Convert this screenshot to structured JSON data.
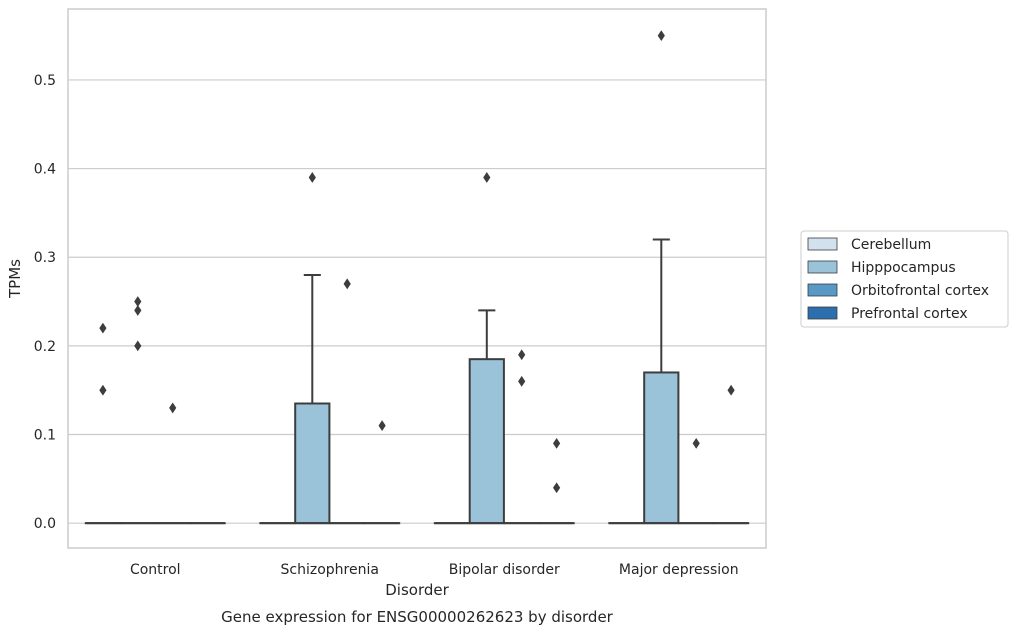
{
  "chart_data": {
    "type": "box",
    "caption": "Gene expression for ENSG00000262623 by disorder",
    "xlabel": "Disorder",
    "ylabel": "TPMs",
    "ylim": [
      -0.028,
      0.58
    ],
    "yticks": [
      0.0,
      0.1,
      0.2,
      0.3,
      0.4,
      0.5
    ],
    "ytick_labels": [
      "0.0",
      "0.1",
      "0.2",
      "0.3",
      "0.4",
      "0.5"
    ],
    "grid": "horizontal",
    "legend_position": "right",
    "categories": [
      "Control",
      "Schizophrenia",
      "Bipolar disorder",
      "Major depression"
    ],
    "series": [
      {
        "name": "Cerebellum",
        "color": "#d1e1ee",
        "boxes": [
          {
            "category": "Control",
            "q1": 0,
            "median": 0,
            "q3": 0,
            "whisker_low": 0,
            "whisker_high": 0,
            "outliers": [
              0.22,
              0.15
            ]
          },
          {
            "category": "Schizophrenia",
            "q1": 0,
            "median": 0,
            "q3": 0,
            "whisker_low": 0,
            "whisker_high": 0,
            "outliers": []
          },
          {
            "category": "Bipolar disorder",
            "q1": 0,
            "median": 0,
            "q3": 0,
            "whisker_low": 0,
            "whisker_high": 0,
            "outliers": []
          },
          {
            "category": "Major depression",
            "q1": 0,
            "median": 0,
            "q3": 0,
            "whisker_low": 0,
            "whisker_high": 0,
            "outliers": []
          }
        ]
      },
      {
        "name": "Hipppocampus",
        "color": "#9ac3da",
        "boxes": [
          {
            "category": "Control",
            "q1": 0,
            "median": 0,
            "q3": 0,
            "whisker_low": 0,
            "whisker_high": 0,
            "outliers": [
              0.25,
              0.24,
              0.2
            ]
          },
          {
            "category": "Schizophrenia",
            "q1": 0,
            "median": 0,
            "q3": 0.135,
            "whisker_low": 0,
            "whisker_high": 0.28,
            "outliers": [
              0.39
            ]
          },
          {
            "category": "Bipolar disorder",
            "q1": 0,
            "median": 0,
            "q3": 0.185,
            "whisker_low": 0,
            "whisker_high": 0.24,
            "outliers": [
              0.39
            ]
          },
          {
            "category": "Major depression",
            "q1": 0,
            "median": 0,
            "q3": 0.17,
            "whisker_low": 0,
            "whisker_high": 0.32,
            "outliers": [
              0.55
            ]
          }
        ]
      },
      {
        "name": "Orbitofrontal cortex",
        "color": "#5899c5",
        "boxes": [
          {
            "category": "Control",
            "q1": 0,
            "median": 0,
            "q3": 0,
            "whisker_low": 0,
            "whisker_high": 0,
            "outliers": [
              0.13
            ]
          },
          {
            "category": "Schizophrenia",
            "q1": 0,
            "median": 0,
            "q3": 0,
            "whisker_low": 0,
            "whisker_high": 0,
            "outliers": [
              0.27
            ]
          },
          {
            "category": "Bipolar disorder",
            "q1": 0,
            "median": 0,
            "q3": 0,
            "whisker_low": 0,
            "whisker_high": 0,
            "outliers": [
              0.19,
              0.16
            ]
          },
          {
            "category": "Major depression",
            "q1": 0,
            "median": 0,
            "q3": 0,
            "whisker_low": 0,
            "whisker_high": 0,
            "outliers": [
              0.09
            ]
          }
        ]
      },
      {
        "name": "Prefrontal cortex",
        "color": "#2b6fae",
        "boxes": [
          {
            "category": "Control",
            "q1": 0,
            "median": 0,
            "q3": 0,
            "whisker_low": 0,
            "whisker_high": 0,
            "outliers": []
          },
          {
            "category": "Schizophrenia",
            "q1": 0,
            "median": 0,
            "q3": 0,
            "whisker_low": 0,
            "whisker_high": 0,
            "outliers": [
              0.11
            ]
          },
          {
            "category": "Bipolar disorder",
            "q1": 0,
            "median": 0,
            "q3": 0,
            "whisker_low": 0,
            "whisker_high": 0,
            "outliers": [
              0.09,
              0.04
            ]
          },
          {
            "category": "Major depression",
            "q1": 0,
            "median": 0,
            "q3": 0,
            "whisker_low": 0,
            "whisker_high": 0,
            "outliers": [
              0.15
            ]
          }
        ]
      }
    ]
  },
  "colors": {
    "frame": "#cccccc",
    "grid": "#cccccc",
    "line": "#3d3d3d",
    "text": "#262626"
  }
}
